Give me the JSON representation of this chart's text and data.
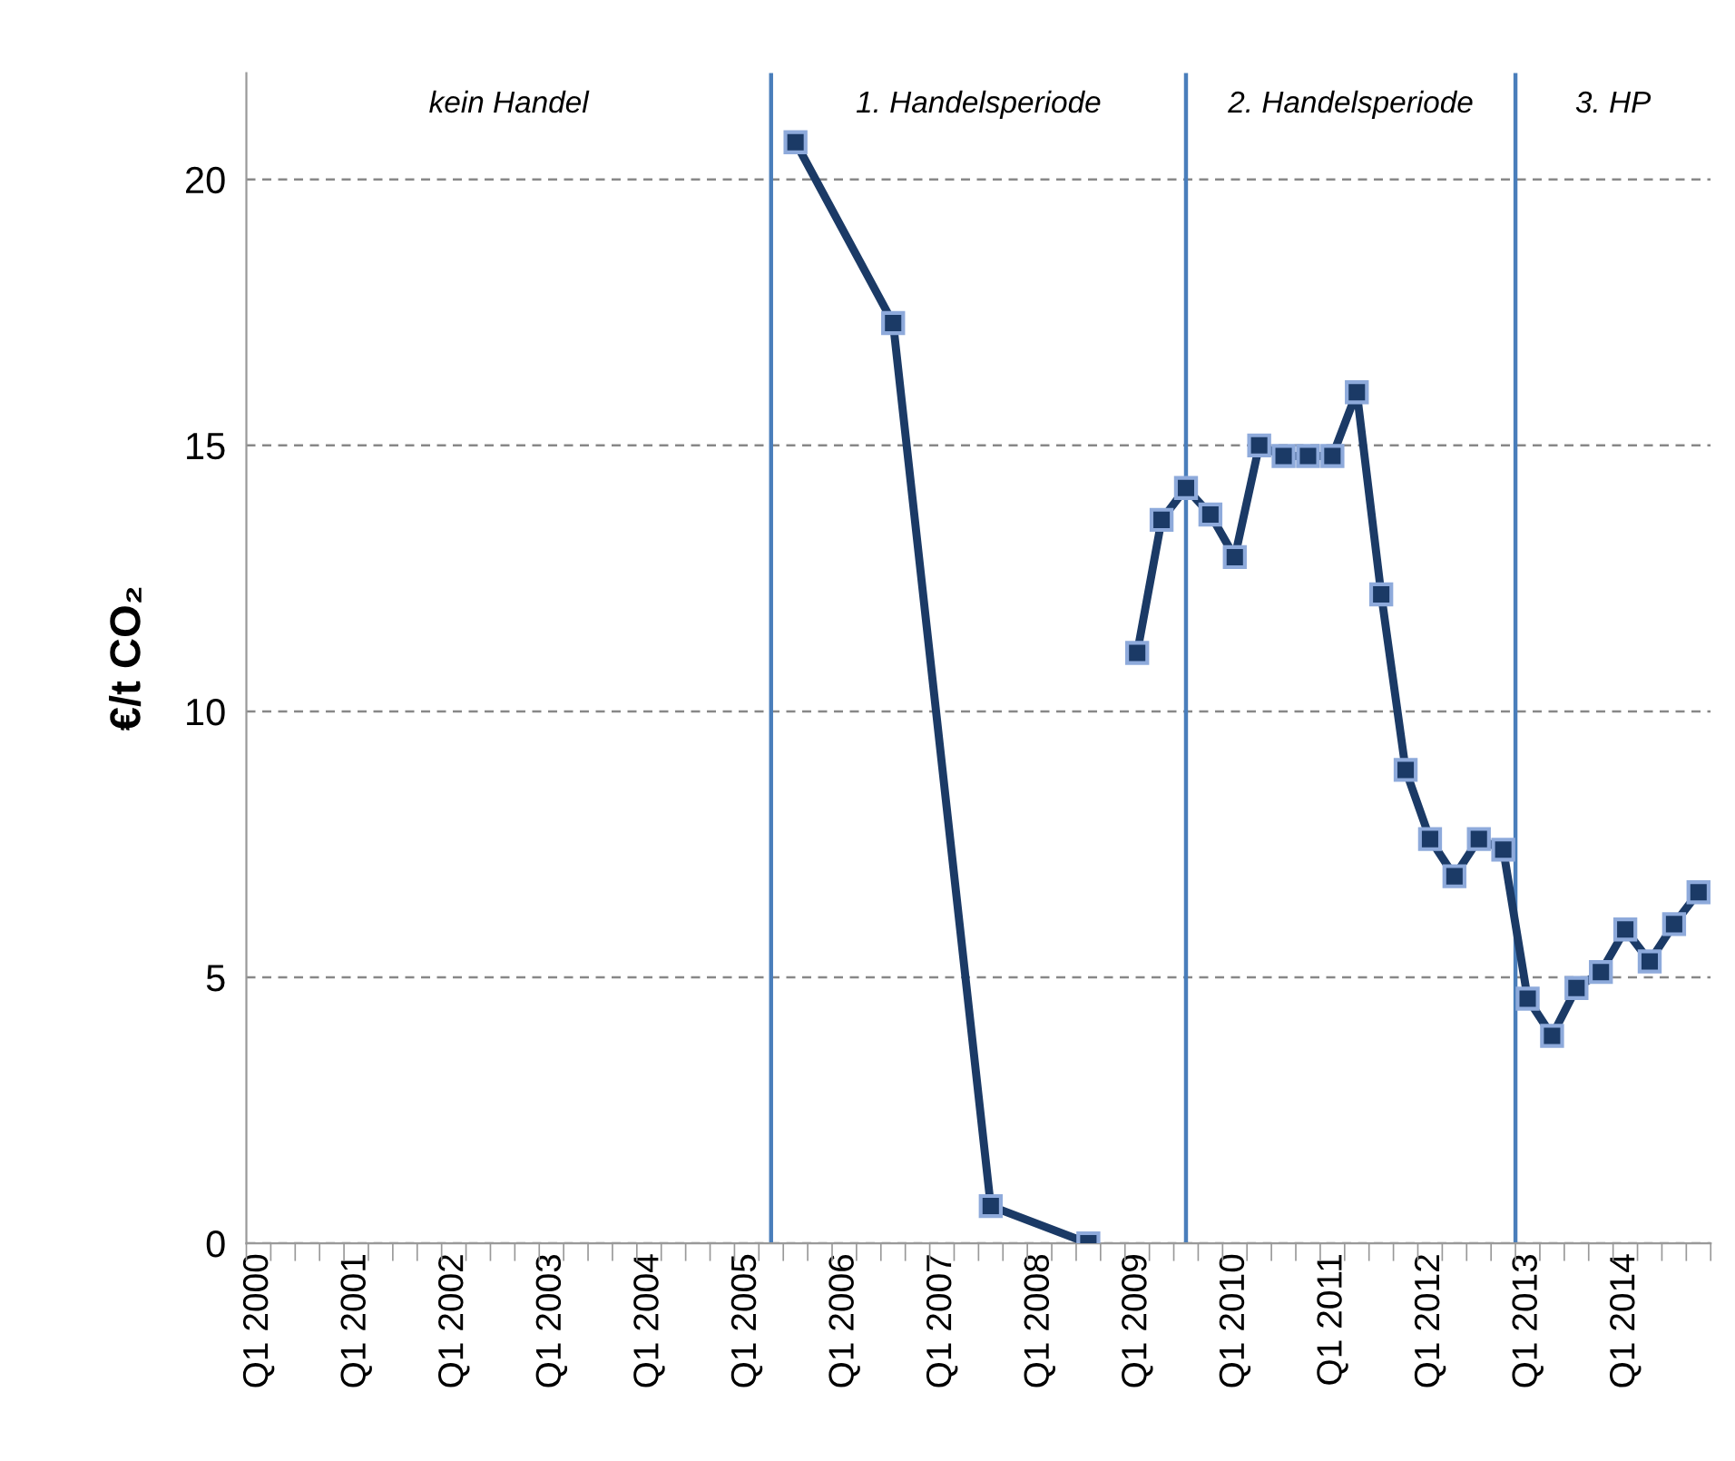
{
  "chart_data": {
    "type": "line",
    "ylabel": "€/t CO₂",
    "categories": [
      "Q1 2000",
      null,
      null,
      null,
      "Q1 2001",
      null,
      null,
      null,
      "Q1 2002",
      null,
      null,
      null,
      "Q1 2003",
      null,
      null,
      null,
      "Q1 2004",
      null,
      null,
      null,
      "Q1 2005",
      null,
      null,
      null,
      "Q1 2006",
      null,
      null,
      null,
      "Q1 2007",
      null,
      null,
      null,
      "Q1 2008",
      null,
      null,
      null,
      "Q1 2009",
      null,
      null,
      null,
      "Q1 2010",
      null,
      null,
      null,
      "Q1 2011",
      null,
      null,
      null,
      "Q1 2012",
      null,
      null,
      null,
      "Q1 2013",
      null,
      null,
      null,
      "Q1 2014",
      null,
      null,
      null
    ],
    "series": [
      {
        "color": "#1b3a66",
        "values": [
          null,
          null,
          null,
          null,
          null,
          null,
          null,
          null,
          null,
          null,
          null,
          null,
          null,
          null,
          null,
          null,
          null,
          null,
          null,
          null,
          null,
          null,
          20.7,
          null,
          null,
          null,
          17.3,
          null,
          null,
          null,
          0.7,
          null,
          null,
          null,
          0,
          null,
          null,
          null,
          null,
          null,
          null,
          null,
          null,
          null,
          null,
          null,
          null,
          null,
          null,
          null,
          null,
          null,
          null,
          null,
          null,
          null,
          null,
          null,
          null,
          null
        ]
      },
      {
        "color": "#1b3a66",
        "values": [
          null,
          null,
          null,
          null,
          null,
          null,
          null,
          null,
          null,
          null,
          null,
          null,
          null,
          null,
          null,
          null,
          null,
          null,
          null,
          null,
          null,
          null,
          null,
          null,
          null,
          null,
          null,
          null,
          null,
          null,
          null,
          null,
          null,
          null,
          null,
          null,
          11.1,
          13.6,
          14.2,
          13.7,
          12.9,
          15.0,
          14.8,
          14.8,
          14.8,
          16.0,
          12.2,
          8.9,
          7.6,
          6.9,
          7.6,
          7.4,
          4.6,
          3.9,
          4.8,
          5.1,
          5.9,
          5.3,
          6.0,
          6.6
        ]
      }
    ],
    "ylim": [
      0,
      22
    ],
    "yticks": [
      0,
      5,
      10,
      15,
      20
    ],
    "grid": "y",
    "marker": "square",
    "line_style": "solid",
    "annotations": [
      "kein Handel",
      "1. Handelsperiode",
      "2. Handelsperiode",
      "3. HP"
    ]
  }
}
